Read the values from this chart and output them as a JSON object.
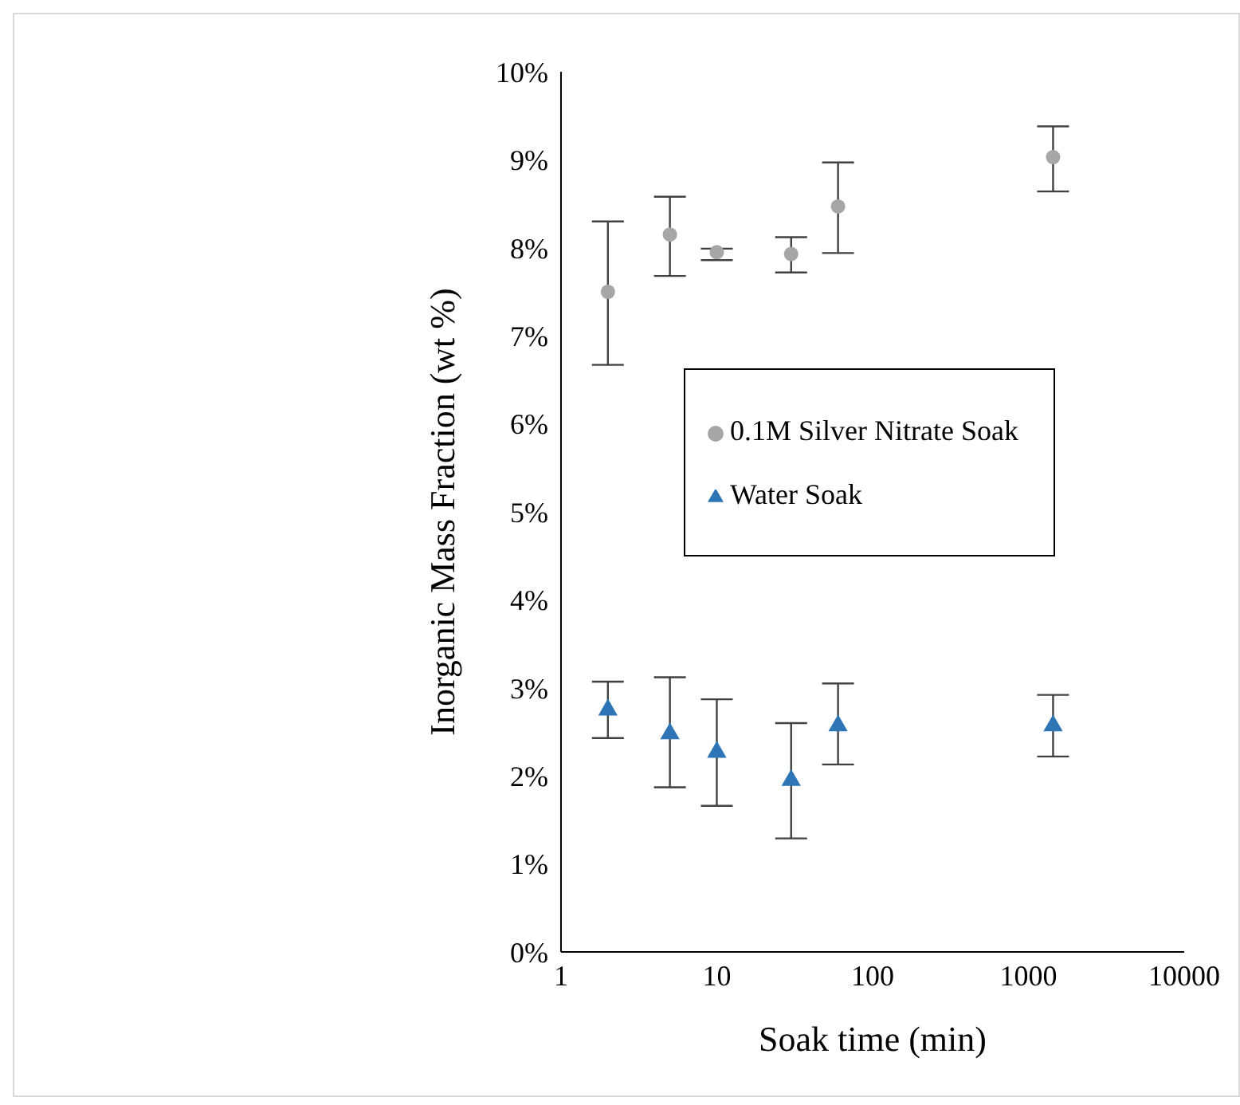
{
  "chart_data": {
    "type": "scatter",
    "xlabel": "Soak time (min)",
    "ylabel": "Inorganic Mass Fraction (wt %)",
    "log": "x",
    "xlim": [
      1,
      10000
    ],
    "xticks": [
      1,
      10,
      100,
      1000,
      10000
    ],
    "ylim": [
      0,
      10
    ],
    "yticks": [
      {
        "value": 0,
        "label": "0%"
      },
      {
        "value": 1,
        "label": "1%"
      },
      {
        "value": 2,
        "label": "2%"
      },
      {
        "value": 3,
        "label": "3%"
      },
      {
        "value": 4,
        "label": "4%"
      },
      {
        "value": 5,
        "label": "5%"
      },
      {
        "value": 6,
        "label": "6%"
      },
      {
        "value": 7,
        "label": "7%"
      },
      {
        "value": 8,
        "label": "8%"
      },
      {
        "value": 9,
        "label": "9%"
      },
      {
        "value": 10,
        "label": "10%"
      }
    ],
    "grid": false,
    "legend": "right",
    "x": [
      2,
      5,
      10,
      30,
      60,
      1440
    ],
    "series": [
      {
        "name": "0.1M Silver Nitrate Soak",
        "color": "#a6a6a6",
        "marker": "circle",
        "values": [
          7.5,
          8.15,
          7.95,
          7.93,
          8.47,
          9.03
        ],
        "errors": [
          [
            6.67,
            8.3
          ],
          [
            7.68,
            8.58
          ],
          [
            7.86,
            7.99
          ],
          [
            7.72,
            8.12
          ],
          [
            7.94,
            8.97
          ],
          [
            8.64,
            9.38
          ]
        ]
      },
      {
        "name": "Water Soak",
        "color": "#2e75b6",
        "marker": "triangle",
        "values": [
          2.75,
          2.48,
          2.27,
          1.95,
          2.57,
          2.57
        ],
        "errors": [
          [
            2.43,
            3.07
          ],
          [
            1.87,
            3.12
          ],
          [
            1.66,
            2.87
          ],
          [
            1.29,
            2.6
          ],
          [
            2.13,
            3.05
          ],
          [
            2.22,
            2.92
          ]
        ]
      }
    ]
  }
}
